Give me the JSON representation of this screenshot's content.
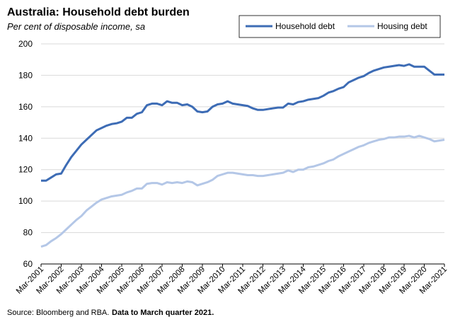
{
  "chart_data": {
    "type": "line",
    "title": "Australia: Household debt burden",
    "subtitle": "Per cent of disposable income, sa",
    "source": "Source: Bloomberg and RBA.",
    "note": "Data to March quarter 2021.",
    "categories": [
      "Mar-2001",
      null,
      null,
      null,
      "Mar-2002",
      null,
      null,
      null,
      "Mar-2003",
      null,
      null,
      null,
      "Mar-2004",
      null,
      null,
      null,
      "Mar-2005",
      null,
      null,
      null,
      "Mar-2006",
      null,
      null,
      null,
      "Mar-2007",
      null,
      null,
      null,
      "Mar-2008",
      null,
      null,
      null,
      "Mar-2009",
      null,
      null,
      null,
      "Mar-2010",
      null,
      null,
      null,
      "Mar-2011",
      null,
      null,
      null,
      "Mar-2012",
      null,
      null,
      null,
      "Mar-2013",
      null,
      null,
      null,
      "Mar-2014",
      null,
      null,
      null,
      "Mar-2015",
      null,
      null,
      null,
      "Mar-2016",
      null,
      null,
      null,
      "Mar-2017",
      null,
      null,
      null,
      "Mar-2018",
      null,
      null,
      null,
      "Mar-2019",
      null,
      null,
      null,
      "Mar-2020",
      null,
      null,
      null,
      "Mar-2021"
    ],
    "series": [
      {
        "name": "Household debt",
        "color": "#3d6cb5",
        "values": [
          113,
          113,
          115,
          117,
          117.5,
          123,
          128,
          132,
          136,
          139,
          142,
          145,
          146.5,
          148,
          149,
          149.5,
          150.5,
          153,
          153,
          155.5,
          156.5,
          161,
          162,
          162,
          161,
          163.5,
          162.5,
          162.5,
          161,
          161.5,
          160,
          157,
          156.5,
          157,
          160,
          161.5,
          162,
          163.5,
          162,
          161.5,
          161,
          160.5,
          159,
          158,
          158,
          158.5,
          159,
          159.5,
          159.5,
          162,
          161.5,
          163,
          163.5,
          164.5,
          165,
          165.5,
          167,
          169,
          170,
          171.5,
          172.5,
          175.5,
          177,
          178.5,
          179.5,
          181.5,
          183,
          184,
          185,
          185.5,
          186,
          186.5,
          186,
          187,
          185.5,
          185.5,
          185.5,
          183,
          180.5,
          180.5,
          180.5
        ]
      },
      {
        "name": "Housing debt",
        "color": "#b4c7e7",
        "values": [
          71,
          72,
          74.5,
          76.5,
          79,
          82,
          85,
          88,
          90.5,
          94,
          96.5,
          99,
          101,
          102,
          103,
          103.5,
          104,
          105.5,
          106.5,
          108,
          108,
          111,
          111.5,
          111.5,
          110.5,
          112,
          111.5,
          112,
          111.5,
          112.5,
          112,
          110,
          111,
          112,
          113.5,
          116,
          117,
          118,
          118,
          117.5,
          117,
          116.5,
          116.5,
          116,
          116,
          116.5,
          117,
          117.5,
          118,
          119.5,
          118.5,
          120,
          120,
          121.5,
          122,
          123,
          124,
          125.5,
          126.5,
          128.5,
          130,
          131.5,
          133,
          134.5,
          135.5,
          137,
          138,
          139,
          139.5,
          140.5,
          140.5,
          141,
          141,
          141.5,
          140.5,
          141.5,
          140.5,
          139.5,
          138,
          138.5,
          139
        ]
      }
    ],
    "ylim": [
      60,
      200
    ],
    "yticks": [
      60,
      80,
      100,
      120,
      140,
      160,
      180,
      200
    ],
    "grid": true
  }
}
